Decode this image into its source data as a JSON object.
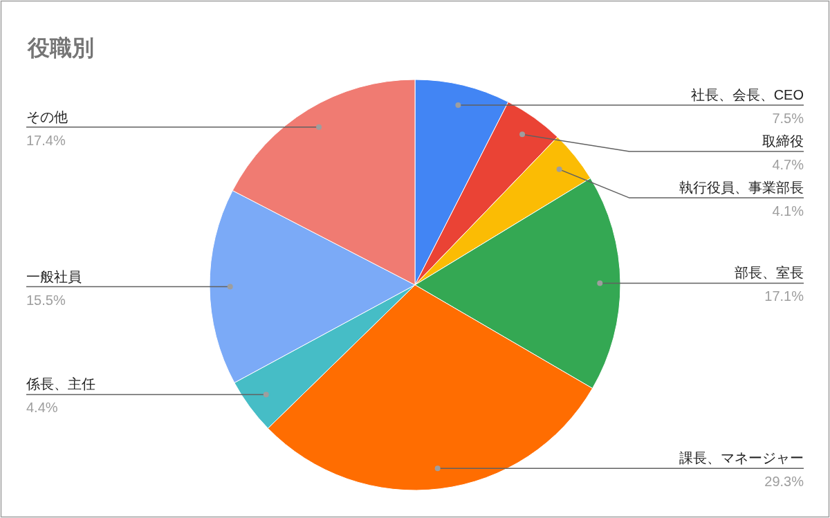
{
  "chart_data": {
    "type": "pie",
    "title": "役職別",
    "categories": [
      "社長、会長、CEO",
      "取締役",
      "執行役員、事業部長",
      "部長、室長",
      "課長、マネージャー",
      "係長、主任",
      "一般社員",
      "その他"
    ],
    "values": [
      7.5,
      4.7,
      4.1,
      17.1,
      29.3,
      4.4,
      15.5,
      17.4
    ],
    "colors": [
      "#4285f4",
      "#ea4335",
      "#fbbc04",
      "#34a853",
      "#ff6d01",
      "#46bdc6",
      "#7baaf7",
      "#f07b72"
    ],
    "value_labels": [
      "7.5%",
      "4.7%",
      "4.1%",
      "17.1%",
      "29.3%",
      "4.4%",
      "15.5%",
      "17.4%"
    ]
  }
}
